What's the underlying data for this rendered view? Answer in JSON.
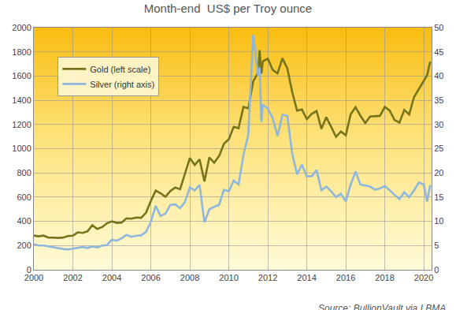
{
  "chart_data": {
    "type": "line",
    "title": "Month-end  US$ per Troy ounce",
    "annotation": "Source: BullionVault via LBMA",
    "x": [
      2000,
      2000.25,
      2000.5,
      2000.75,
      2001,
      2001.25,
      2001.5,
      2001.75,
      2002,
      2002.25,
      2002.5,
      2002.75,
      2003,
      2003.25,
      2003.5,
      2003.75,
      2004,
      2004.25,
      2004.5,
      2004.75,
      2005,
      2005.25,
      2005.5,
      2005.75,
      2006,
      2006.25,
      2006.5,
      2006.75,
      2007,
      2007.25,
      2007.5,
      2007.75,
      2008,
      2008.25,
      2008.5,
      2008.75,
      2009,
      2009.25,
      2009.5,
      2009.75,
      2010,
      2010.25,
      2010.5,
      2010.75,
      2011,
      2011.25,
      2011.5,
      2011.58,
      2011.67,
      2011.75,
      2012,
      2012.25,
      2012.5,
      2012.75,
      2013,
      2013.25,
      2013.5,
      2013.75,
      2014,
      2014.25,
      2014.5,
      2014.75,
      2015,
      2015.25,
      2015.5,
      2015.75,
      2016,
      2016.25,
      2016.5,
      2016.75,
      2017,
      2017.25,
      2017.5,
      2017.75,
      2018,
      2018.25,
      2018.5,
      2018.75,
      2019,
      2019.25,
      2019.5,
      2019.75,
      2020,
      2020.17,
      2020.33
    ],
    "xlim": [
      2000,
      2020.4
    ],
    "xticks": [
      2000,
      2002,
      2004,
      2006,
      2008,
      2010,
      2012,
      2014,
      2016,
      2018,
      2020
    ],
    "ylim": [
      0,
      2000
    ],
    "yticks": [
      0,
      200,
      400,
      600,
      800,
      1000,
      1200,
      1400,
      1600,
      1800,
      2000
    ],
    "y2lim": [
      0,
      50
    ],
    "y2ticks": [
      0,
      5,
      10,
      15,
      20,
      25,
      30,
      35,
      40,
      45,
      50
    ],
    "grid": true,
    "legend": "upper left",
    "series": [
      {
        "name": "Gold (left scale)",
        "color": "#76741a",
        "values": [
          283,
          276,
          282,
          265,
          265,
          263,
          266,
          278,
          282,
          309,
          305,
          317,
          368,
          337,
          352,
          384,
          400,
          387,
          390,
          425,
          422,
          432,
          429,
          470,
          568,
          654,
          632,
          603,
          650,
          679,
          665,
          789,
          923,
          865,
          912,
          730,
          928,
          884,
          939,
          1040,
          1078,
          1180,
          1169,
          1346,
          1333,
          1556,
          1628,
          1813,
          1620,
          1722,
          1744,
          1651,
          1622,
          1747,
          1664,
          1469,
          1314,
          1324,
          1244,
          1288,
          1311,
          1164,
          1260,
          1180,
          1098,
          1142,
          1111,
          1285,
          1342,
          1272,
          1212,
          1266,
          1269,
          1271,
          1345,
          1315,
          1237,
          1215,
          1320,
          1283,
          1427,
          1490,
          1560,
          1608,
          1720
        ]
      },
      {
        "name": "Silver (right axis)",
        "color": "#8fb6dc",
        "axis": "y2",
        "values": [
          5.3,
          5.0,
          5.0,
          4.8,
          4.6,
          4.4,
          4.3,
          4.2,
          4.4,
          4.6,
          4.7,
          4.5,
          4.8,
          4.6,
          5.0,
          5.1,
          6.2,
          6.0,
          6.5,
          7.2,
          6.8,
          7.0,
          7.1,
          7.8,
          9.9,
          13.2,
          11.1,
          11.6,
          13.4,
          13.5,
          12.7,
          14.0,
          17.0,
          16.4,
          17.5,
          9.8,
          12.5,
          13.0,
          13.4,
          16.5,
          16.2,
          18.4,
          17.6,
          23.7,
          27.9,
          48.5,
          40.1,
          41.7,
          30.5,
          34.0,
          33.3,
          31.3,
          27.6,
          32.0,
          31.8,
          24.0,
          19.7,
          21.7,
          19.3,
          19.3,
          20.6,
          16.4,
          17.2,
          16.2,
          15.0,
          15.7,
          14.1,
          17.6,
          20.3,
          17.6,
          17.4,
          17.2,
          16.5,
          16.8,
          17.3,
          16.4,
          15.4,
          14.6,
          16.0,
          15.0,
          16.4,
          18.0,
          17.6,
          14.1,
          17.5
        ]
      }
    ]
  }
}
